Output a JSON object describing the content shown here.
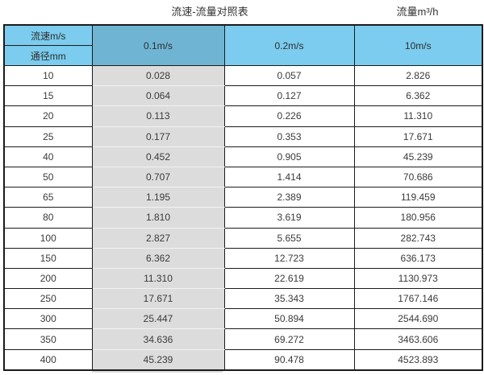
{
  "titles": {
    "left": "流速-流量对照表",
    "right": "流量m³/h"
  },
  "chart_data": {
    "type": "table",
    "title": "流速-流量对照表",
    "flow_unit_header": "流量m³/h",
    "corner": {
      "top": "流速m/s",
      "bottom": "通径mm"
    },
    "velocity_columns": [
      "0.1m/s",
      "0.2m/s",
      "10m/s"
    ],
    "columns": [
      "通径mm",
      "0.1m/s",
      "0.2m/s",
      "10m/s"
    ],
    "highlighted_column": "0.1m/s",
    "rows": [
      [
        "10",
        "0.028",
        "0.057",
        "2.826"
      ],
      [
        "15",
        "0.064",
        "0.127",
        "6.362"
      ],
      [
        "20",
        "0.113",
        "0.226",
        "11.310"
      ],
      [
        "25",
        "0.177",
        "0.353",
        "17.671"
      ],
      [
        "40",
        "0.452",
        "0.905",
        "45.239"
      ],
      [
        "50",
        "0.707",
        "1.414",
        "70.686"
      ],
      [
        "65",
        "1.195",
        "2.389",
        "119.459"
      ],
      [
        "80",
        "1.810",
        "3.619",
        "180.956"
      ],
      [
        "100",
        "2.827",
        "5.655",
        "282.743"
      ],
      [
        "150",
        "6.362",
        "12.723",
        "636.173"
      ],
      [
        "200",
        "11.310",
        "22.619",
        "1130.973"
      ],
      [
        "250",
        "17.671",
        "35.343",
        "1767.146"
      ],
      [
        "300",
        "25.447",
        "50.894",
        "2544.690"
      ],
      [
        "350",
        "34.636",
        "69.272",
        "3463.606"
      ],
      [
        "400",
        "45.239",
        "90.478",
        "4523.893"
      ]
    ]
  },
  "colors": {
    "header_blue": "#7bccee",
    "highlight_header_blue": "#6fb5d3",
    "highlight_column_gray": "#dcdcdc",
    "border": "#1b1b1b",
    "text": "#3a3a3a"
  }
}
